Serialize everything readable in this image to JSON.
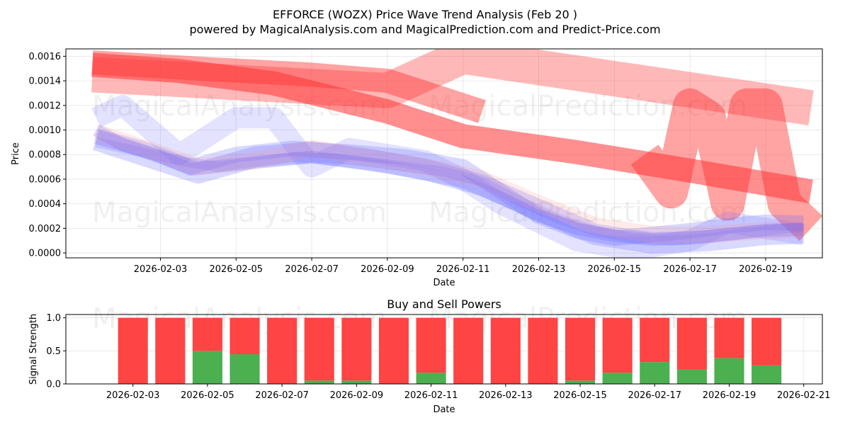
{
  "chart_data": [
    {
      "type": "line",
      "title": "EFFORCE (WOZX) Price Wave Trend Analysis (Feb 20 )",
      "subtitle": "powered by MagicalAnalysis.com and MagicalPrediction.com and Predict-Price.com",
      "xlabel": "Date",
      "ylabel": "Price",
      "ylim": [
        -4e-05,
        0.00166
      ],
      "xlim_days": [
        -0.5,
        19.5
      ],
      "x_start_date": "2026-02-01",
      "yticks": [
        "0.0000",
        "0.0002",
        "0.0004",
        "0.0006",
        "0.0008",
        "0.0010",
        "0.0012",
        "0.0014",
        "0.0016"
      ],
      "ytick_values": [
        0,
        0.0002,
        0.0004,
        0.0006,
        0.0008,
        0.001,
        0.0012,
        0.0014,
        0.0016
      ],
      "xticks": [
        "2026-02-03",
        "2026-02-05",
        "2026-02-07",
        "2026-02-09",
        "2026-02-11",
        "2026-02-13",
        "2026-02-15",
        "2026-02-17",
        "2026-02-19"
      ],
      "xtick_days": [
        2,
        4,
        6,
        8,
        10,
        12,
        14,
        16,
        18
      ],
      "grid": true,
      "watermarks": [
        "MagicalAnalysis.com",
        "MagicalPrediction.com",
        "MagicalAnalysis.com",
        "MagicalPrediction.com"
      ],
      "series": [
        {
          "name": "red-wave-1",
          "color": "#ff3333",
          "opacity": 0.45,
          "width": 34,
          "x": [
            0.2,
            3,
            6,
            8,
            9.5,
            10.5
          ],
          "y": [
            0.00155,
            0.0015,
            0.00145,
            0.0014,
            0.00125,
            0.00115
          ]
        },
        {
          "name": "red-wave-2",
          "color": "#ff3333",
          "opacity": 0.35,
          "width": 50,
          "x": [
            0.2,
            8,
            10,
            19.2
          ],
          "y": [
            0.00145,
            0.00132,
            0.0016,
            0.00118
          ]
        },
        {
          "name": "red-wave-3",
          "color": "#ff3333",
          "opacity": 0.55,
          "width": 34,
          "x": [
            0.2,
            2.5,
            5,
            8,
            10,
            13,
            16,
            19.2
          ],
          "y": [
            0.00153,
            0.00148,
            0.00138,
            0.00115,
            0.00095,
            0.00082,
            0.00067,
            0.0005
          ]
        },
        {
          "name": "red-spike-wave",
          "color": "#ff3333",
          "opacity": 0.45,
          "width": 48,
          "x": [
            14.8,
            15.5,
            16,
            16.5,
            17,
            17.5,
            18,
            18.5,
            19.2
          ],
          "y": [
            0.0008,
            0.0005,
            0.0012,
            0.0011,
            0.0004,
            0.0012,
            0.0012,
            0.0004,
            0.0002
          ]
        },
        {
          "name": "blue-band-1",
          "color": "#6666ff",
          "opacity": 0.25,
          "width": 22,
          "x": [
            0.3,
            1.5,
            2.8,
            4,
            5.5,
            7,
            8.5,
            10,
            11,
            12,
            13,
            14,
            15,
            16,
            17,
            18,
            19
          ],
          "y": [
            0.00095,
            0.00085,
            0.0007,
            0.0008,
            0.00085,
            0.00082,
            0.00078,
            0.0007,
            0.0005,
            0.0003,
            0.00018,
            0.00012,
            0.00015,
            0.00018,
            0.00022,
            0.00025,
            0.00024
          ]
        },
        {
          "name": "blue-band-2",
          "color": "#6666ff",
          "opacity": 0.25,
          "width": 18,
          "x": [
            0.3,
            1,
            2,
            2.8,
            4,
            5,
            6,
            7,
            8,
            9,
            10,
            11,
            12,
            13,
            14,
            15,
            16,
            17,
            18,
            19
          ],
          "y": [
            0.001,
            0.00088,
            0.00078,
            0.00068,
            0.00072,
            0.00075,
            0.00078,
            0.00074,
            0.0007,
            0.00064,
            0.00058,
            0.00045,
            0.0003,
            0.0002,
            0.00014,
            0.00011,
            0.00012,
            0.00015,
            0.00018,
            0.00019
          ]
        },
        {
          "name": "blue-band-3",
          "color": "#6666ff",
          "opacity": 0.25,
          "width": 30,
          "x": [
            0.3,
            1.5,
            3,
            4.5,
            6,
            7.5,
            9,
            10.5,
            12,
            13.5,
            15,
            16.5,
            18,
            19
          ],
          "y": [
            0.00092,
            0.0008,
            0.00065,
            0.00078,
            0.00082,
            0.00076,
            0.00068,
            0.00055,
            0.00035,
            0.00015,
            8e-05,
            0.0001,
            0.00015,
            0.00016
          ]
        },
        {
          "name": "blue-band-4",
          "color": "#6666ff",
          "opacity": 0.2,
          "width": 14,
          "x": [
            0.3,
            1.5,
            2.5,
            3.5,
            4.5,
            5.5,
            6.5,
            7.5,
            8.5,
            9.5,
            10.5,
            11.5,
            12.5,
            13.5,
            14.5,
            15.5,
            16.5,
            17.5,
            18.5,
            19
          ],
          "y": [
            0.0009,
            0.00082,
            0.00075,
            0.0007,
            0.00074,
            0.00078,
            0.00077,
            0.00074,
            0.0007,
            0.00066,
            0.00058,
            0.00042,
            0.00028,
            0.00018,
            0.00012,
            0.0001,
            0.00012,
            0.00016,
            0.0002,
            0.00021
          ]
        },
        {
          "name": "blue-spike-wave",
          "color": "#6666ff",
          "opacity": 0.18,
          "width": 30,
          "x": [
            0.3,
            1,
            2.5,
            4,
            5,
            6,
            7,
            8,
            9,
            10,
            11,
            12,
            13,
            14,
            15,
            16,
            17,
            18,
            19
          ],
          "y": [
            0.0011,
            0.0012,
            0.0008,
            0.0011,
            0.0011,
            0.0007,
            0.00085,
            0.0008,
            0.00075,
            0.0006,
            0.0004,
            0.00025,
            0.0001,
            5e-05,
            5e-05,
            0.0001,
            0.00025,
            0.0002,
            0.00015
          ]
        },
        {
          "name": "pink-band",
          "color": "#ff8888",
          "opacity": 0.18,
          "width": 24,
          "x": [
            0.3,
            1.5,
            3,
            4.5,
            6,
            7.5,
            9,
            10.5,
            12,
            13.5,
            15,
            16.5,
            18,
            19
          ],
          "y": [
            0.00098,
            0.00086,
            0.0007,
            0.00075,
            0.00085,
            0.00078,
            0.0007,
            0.0006,
            0.0004,
            0.00022,
            0.00015,
            0.00015,
            0.00018,
            0.0002
          ]
        }
      ]
    },
    {
      "type": "bar",
      "title": "Buy and Sell Powers",
      "xlabel": "Date",
      "ylabel": "Signal Strength",
      "ylim": [
        0,
        1.05
      ],
      "yticks": [
        "0.0",
        "0.5",
        "1.0"
      ],
      "ytick_values": [
        0,
        0.5,
        1.0
      ],
      "xticks": [
        "2026-02-03",
        "2026-02-05",
        "2026-02-07",
        "2026-02-09",
        "2026-02-11",
        "2026-02-13",
        "2026-02-15",
        "2026-02-17",
        "2026-02-19",
        "2026-02-21"
      ],
      "xtick_days": [
        2,
        4,
        6,
        8,
        10,
        12,
        14,
        16,
        18,
        20
      ],
      "dates": [
        "2026-02-03",
        "2026-02-04",
        "2026-02-05",
        "2026-02-06",
        "2026-02-07",
        "2026-02-08",
        "2026-02-09",
        "2026-02-10",
        "2026-02-11",
        "2026-02-12",
        "2026-02-13",
        "2026-02-14",
        "2026-02-15",
        "2026-02-16",
        "2026-02-17",
        "2026-02-18",
        "2026-02-19",
        "2026-02-20"
      ],
      "series": [
        {
          "name": "Buy",
          "color": "#4caf50",
          "values": [
            0,
            0,
            0.5,
            0.45,
            0,
            0.05,
            0.05,
            0,
            0.17,
            0,
            0,
            0,
            0.05,
            0.17,
            0.33,
            0.22,
            0.39,
            0.28
          ]
        },
        {
          "name": "Sell",
          "color": "#ff4444",
          "values": [
            1,
            1,
            0.5,
            0.55,
            1,
            0.95,
            0.95,
            1,
            0.83,
            1,
            1,
            1,
            0.95,
            0.83,
            0.67,
            0.78,
            0.61,
            0.72
          ]
        }
      ]
    }
  ]
}
